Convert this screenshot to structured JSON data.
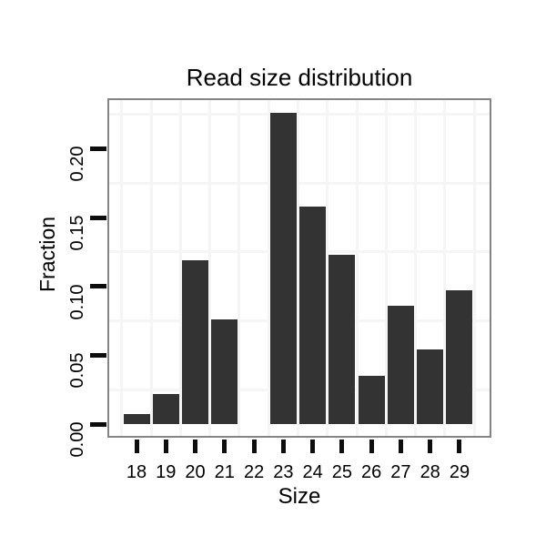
{
  "figure_title": "Read size distribution",
  "colors": {
    "background": "#ffffff",
    "panel_background": "#ffffff",
    "panel_border": "#848484",
    "gridline": "#f5f5f5",
    "bar": "#333333",
    "tick": "#0d0d0d",
    "text": "#000000"
  },
  "chart_data": {
    "type": "bar",
    "title": "Read size distribution",
    "xlabel": "Size",
    "ylabel": "Fraction",
    "categories": [
      18,
      19,
      20,
      21,
      22,
      23,
      24,
      25,
      26,
      27,
      28,
      29
    ],
    "x_tick_labels": [
      "18",
      "19",
      "20",
      "21",
      "22",
      "23",
      "24",
      "25",
      "26",
      "27",
      "28",
      "29"
    ],
    "values": [
      0.007,
      0.022,
      0.119,
      0.076,
      0.0,
      0.226,
      0.158,
      0.123,
      0.035,
      0.086,
      0.054,
      0.097
    ],
    "y_ticks": [
      0.0,
      0.05,
      0.1,
      0.15,
      0.2
    ],
    "y_tick_labels": [
      "0.00",
      "0.05",
      "0.10",
      "0.15",
      "0.20"
    ],
    "ylim": [
      -0.009,
      0.238
    ],
    "grid": "faint gray minor gridlines midway between ticks (horizontal at 0.025 steps, vertical between size categories)",
    "legend": "none",
    "bar_gap_fraction": 0.1
  }
}
